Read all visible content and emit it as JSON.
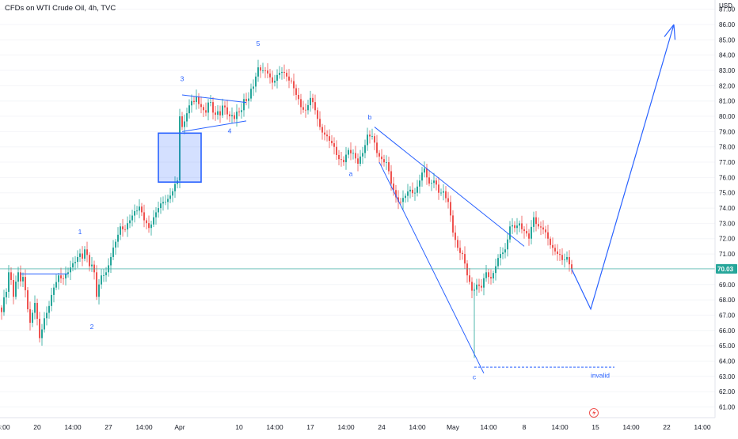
{
  "header": {
    "title": "CFDs on WTI Crude Oil, 4h, TVC"
  },
  "chart_data": {
    "type": "candlestick",
    "symbol": "CFDs on WTI Crude Oil",
    "interval": "4h",
    "source": "TVC",
    "currency": "USD",
    "last_price": "70.03",
    "ylim": [
      60.3,
      87.5
    ],
    "y_ticks": [
      "87.00",
      "86.00",
      "85.00",
      "84.00",
      "83.00",
      "82.00",
      "81.00",
      "80.00",
      "79.00",
      "78.00",
      "77.00",
      "76.00",
      "75.00",
      "74.00",
      "73.00",
      "72.00",
      "71.00",
      "70.00",
      "69.00",
      "68.00",
      "67.00",
      "66.00",
      "65.00",
      "64.00",
      "63.00",
      "62.00",
      "61.00"
    ],
    "x_ticks": [
      {
        "label": "13:00",
        "idx": 0
      },
      {
        "label": "20",
        "idx": 15
      },
      {
        "label": "14:00",
        "idx": 30
      },
      {
        "label": "27",
        "idx": 45
      },
      {
        "label": "14:00",
        "idx": 60
      },
      {
        "label": "Apr",
        "idx": 75
      },
      {
        "label": "10",
        "idx": 100
      },
      {
        "label": "14:00",
        "idx": 115
      },
      {
        "label": "17",
        "idx": 130
      },
      {
        "label": "14:00",
        "idx": 145
      },
      {
        "label": "24",
        "idx": 160
      },
      {
        "label": "14:00",
        "idx": 175
      },
      {
        "label": "May",
        "idx": 190
      },
      {
        "label": "14:00",
        "idx": 205
      },
      {
        "label": "8",
        "idx": 220
      },
      {
        "label": "14:00",
        "idx": 235
      },
      {
        "label": "15",
        "idx": 250
      },
      {
        "label": "14:00",
        "idx": 265
      },
      {
        "label": "22",
        "idx": 280
      },
      {
        "label": "14:00",
        "idx": 295
      }
    ],
    "colors": {
      "up": "#26a69a",
      "down": "#ef5350",
      "drawing": "#2962ff",
      "price_line": "#26a69a"
    },
    "close_anchors": [
      [
        0,
        67.2
      ],
      [
        3,
        69.8
      ],
      [
        5,
        68.2
      ],
      [
        7,
        69.8
      ],
      [
        9,
        69.5
      ],
      [
        12,
        66.5
      ],
      [
        14,
        67.8
      ],
      [
        16,
        65.5
      ],
      [
        18,
        66.8
      ],
      [
        20,
        67.6
      ],
      [
        22,
        68.8
      ],
      [
        24,
        69.6
      ],
      [
        26,
        69.4
      ],
      [
        28,
        69.8
      ],
      [
        30,
        70.4
      ],
      [
        32,
        70.8
      ],
      [
        35,
        71.3
      ],
      [
        37,
        70.2
      ],
      [
        39,
        69.8
      ],
      [
        40,
        68.2
      ],
      [
        42,
        69.6
      ],
      [
        44,
        69.8
      ],
      [
        46,
        70.8
      ],
      [
        48,
        71.8
      ],
      [
        50,
        72.8
      ],
      [
        52,
        72.6
      ],
      [
        54,
        73.2
      ],
      [
        56,
        73.8
      ],
      [
        58,
        74.1
      ],
      [
        60,
        73.2
      ],
      [
        62,
        72.7
      ],
      [
        64,
        73.4
      ],
      [
        66,
        74.0
      ],
      [
        68,
        74.4
      ],
      [
        70,
        74.6
      ],
      [
        72,
        75.1
      ],
      [
        74,
        75.8
      ],
      [
        75,
        80.0
      ],
      [
        76,
        79.3
      ],
      [
        78,
        80.2
      ],
      [
        80,
        81.0
      ],
      [
        83,
        80.8
      ],
      [
        85,
        80.4
      ],
      [
        87,
        80.9
      ],
      [
        90,
        80.1
      ],
      [
        93,
        80.7
      ],
      [
        96,
        80.0
      ],
      [
        99,
        80.3
      ],
      [
        101,
        80.4
      ],
      [
        103,
        81.0
      ],
      [
        105,
        81.8
      ],
      [
        107,
        82.6
      ],
      [
        108,
        83.2
      ],
      [
        110,
        83.0
      ],
      [
        112,
        82.8
      ],
      [
        114,
        82.2
      ],
      [
        116,
        82.7
      ],
      [
        118,
        82.9
      ],
      [
        120,
        82.6
      ],
      [
        122,
        82.3
      ],
      [
        124,
        81.4
      ],
      [
        126,
        80.6
      ],
      [
        128,
        80.4
      ],
      [
        130,
        81.2
      ],
      [
        132,
        80.4
      ],
      [
        134,
        79.3
      ],
      [
        136,
        78.8
      ],
      [
        138,
        78.4
      ],
      [
        140,
        78.0
      ],
      [
        142,
        77.2
      ],
      [
        144,
        77.0
      ],
      [
        146,
        77.8
      ],
      [
        148,
        77.6
      ],
      [
        150,
        76.9
      ],
      [
        152,
        77.6
      ],
      [
        154,
        78.8
      ],
      [
        156,
        78.7
      ],
      [
        158,
        77.6
      ],
      [
        160,
        77.2
      ],
      [
        162,
        77.0
      ],
      [
        164,
        75.6
      ],
      [
        166,
        74.7
      ],
      [
        168,
        74.4
      ],
      [
        170,
        74.8
      ],
      [
        172,
        75.2
      ],
      [
        174,
        75.0
      ],
      [
        176,
        75.8
      ],
      [
        178,
        76.6
      ],
      [
        180,
        75.6
      ],
      [
        182,
        75.8
      ],
      [
        184,
        75.0
      ],
      [
        186,
        75.1
      ],
      [
        188,
        74.4
      ],
      [
        190,
        72.4
      ],
      [
        192,
        71.4
      ],
      [
        194,
        71.0
      ],
      [
        196,
        69.6
      ],
      [
        198,
        68.6
      ],
      [
        200,
        69.0
      ],
      [
        202,
        68.8
      ],
      [
        204,
        69.8
      ],
      [
        206,
        69.4
      ],
      [
        208,
        70.2
      ],
      [
        210,
        71.0
      ],
      [
        212,
        71.3
      ],
      [
        214,
        72.8
      ],
      [
        216,
        72.7
      ],
      [
        218,
        73.0
      ],
      [
        220,
        72.5
      ],
      [
        222,
        72.0
      ],
      [
        224,
        73.4
      ],
      [
        226,
        72.8
      ],
      [
        228,
        72.6
      ],
      [
        230,
        72.0
      ],
      [
        232,
        71.4
      ],
      [
        234,
        71.0
      ],
      [
        236,
        70.6
      ],
      [
        238,
        70.8
      ],
      [
        240,
        70.03
      ]
    ],
    "wave_labels": [
      {
        "text": "1",
        "idx": 33,
        "price": 72.3
      },
      {
        "text": "2",
        "idx": 38,
        "price": 66.1
      },
      {
        "text": "3",
        "idx": 76,
        "price": 82.3
      },
      {
        "text": "4",
        "idx": 96,
        "price": 78.9
      },
      {
        "text": "5",
        "idx": 108,
        "price": 84.6
      },
      {
        "text": "a",
        "idx": 147,
        "price": 76.1
      },
      {
        "text": "b",
        "idx": 155,
        "price": 79.8
      },
      {
        "text": "c",
        "idx": 199,
        "price": 62.8
      },
      {
        "text": "invalid",
        "idx": 252,
        "price": 62.9
      }
    ],
    "drawings": {
      "lines": [
        {
          "name": "support-line-1",
          "points": [
            [
              8,
              69.7
            ],
            [
              28,
              69.7
            ]
          ],
          "width": 1
        },
        {
          "name": "triangle-upper",
          "points": [
            [
              76,
              81.4
            ],
            [
              103,
              80.9
            ]
          ],
          "width": 1
        },
        {
          "name": "triangle-lower",
          "points": [
            [
              76,
              79.0
            ],
            [
              103,
              79.7
            ]
          ],
          "width": 1
        },
        {
          "name": "channel-upper",
          "points": [
            [
              157,
              79.3
            ],
            [
              220,
              71.5
            ]
          ],
          "width": 1
        },
        {
          "name": "channel-lower",
          "points": [
            [
              159,
              77.0
            ],
            [
              203,
              63.2
            ]
          ],
          "width": 1
        },
        {
          "name": "projection-path",
          "points": [
            [
              240,
              70.0
            ],
            [
              248,
              67.4
            ],
            [
              283,
              86.0
            ]
          ],
          "width": 1.2
        },
        {
          "name": "projection-arrow-a",
          "points": [
            [
              283,
              86.0
            ],
            [
              279,
              85.2
            ]
          ],
          "width": 1.2
        },
        {
          "name": "projection-arrow-b",
          "points": [
            [
              283,
              86.0
            ],
            [
              283.5,
              85.0
            ]
          ],
          "width": 1.2
        }
      ],
      "invalid_level": {
        "price": 63.6,
        "from_idx": 199,
        "to_idx": 258
      },
      "box": {
        "x1": 66,
        "x2": 84,
        "top": 78.9,
        "bottom": 75.7
      }
    }
  }
}
